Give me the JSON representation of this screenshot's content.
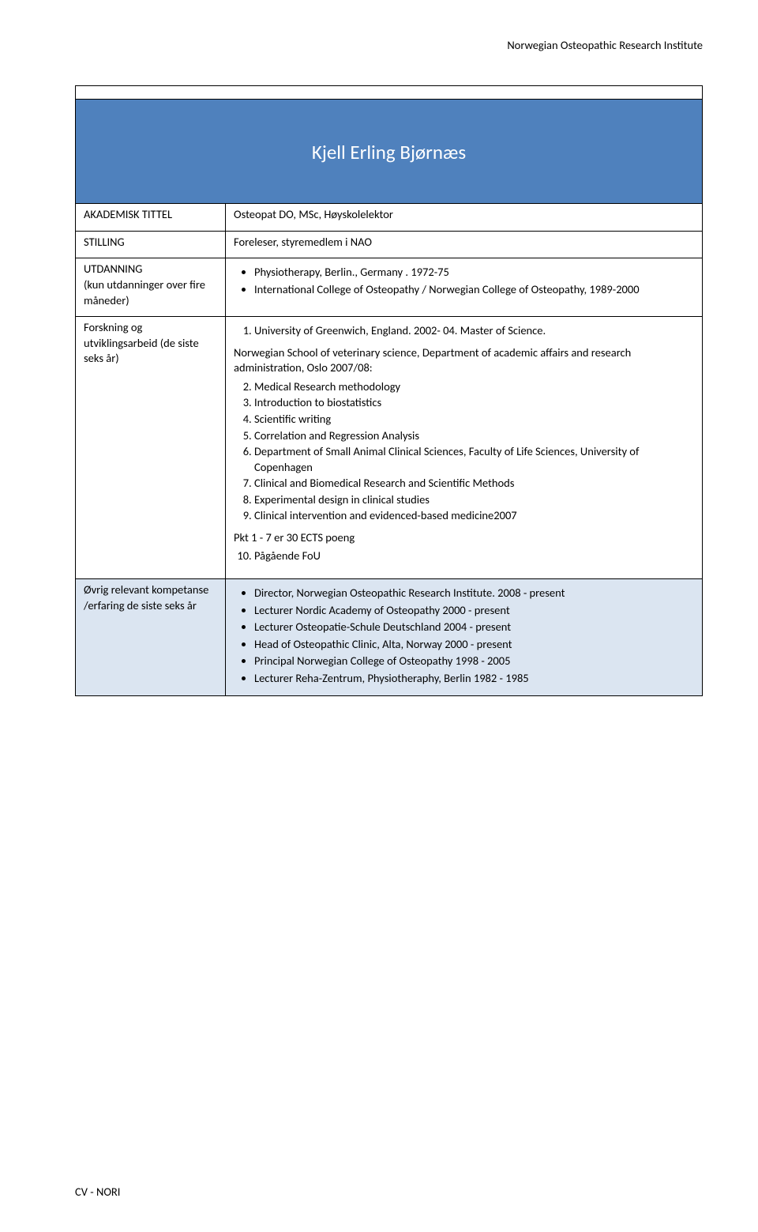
{
  "header": {
    "institute": "Norwegian Osteopathic Research Institute"
  },
  "name": "Kjell Erling Bjørnæs",
  "rows": {
    "akademisk": {
      "label": "AKADEMISK TITTEL",
      "value": "Osteopat DO, MSc, Høyskolelektor"
    },
    "stilling": {
      "label": "STILLING",
      "value": "Foreleser, styremedlem i NAO"
    },
    "utdanning": {
      "label_l1": "UTDANNING",
      "label_l2": "(kun utdanninger over fire måneder)",
      "items": [
        "Physiotherapy, Berlin., Germany . 1972-75",
        "International College of Osteopathy / Norwegian College of Osteopathy, 1989-2000"
      ]
    },
    "forskning": {
      "label": "Forskning og utviklingsarbeid (de siste seks år)",
      "first_item": "University of Greenwich, England. 2002- 04. Master of Science.",
      "intro": "Norwegian School of veterinary science, Department of academic affairs and research administration, Oslo 2007/08:",
      "list2": [
        "Medical Research methodology",
        "Introduction to biostatistics",
        "Scientific writing",
        "Correlation and Regression Analysis",
        "Department of Small Animal Clinical Sciences, Faculty of Life Sciences, University of Copenhagen",
        "Clinical and Biomedical Research and Scientific Methods",
        "Experimental design in clinical studies",
        "Clinical intervention and evidenced-based medicine2007"
      ],
      "note": "Pkt 1 - 7 er 30 ECTS poeng",
      "item10": "Pågående FoU"
    },
    "ovrig": {
      "label": "Øvrig relevant kompetanse /erfaring de siste seks år",
      "items": [
        "Director, Norwegian Osteopathic Research Institute. 2008 - present",
        "Lecturer  Nordic Academy of  Osteopathy 2000 - present",
        "Lecturer Osteopatie-Schule Deutschland 2004 - present",
        "Head of Osteopathic Clinic, Alta, Norway 2000 -  present",
        "Principal Norwegian College of Osteopathy 1998 - 2005",
        "Lecturer Reha-Zentrum, Physiotheraphy,  Berlin 1982 - 1985"
      ]
    }
  },
  "footer": "CV - NORI"
}
